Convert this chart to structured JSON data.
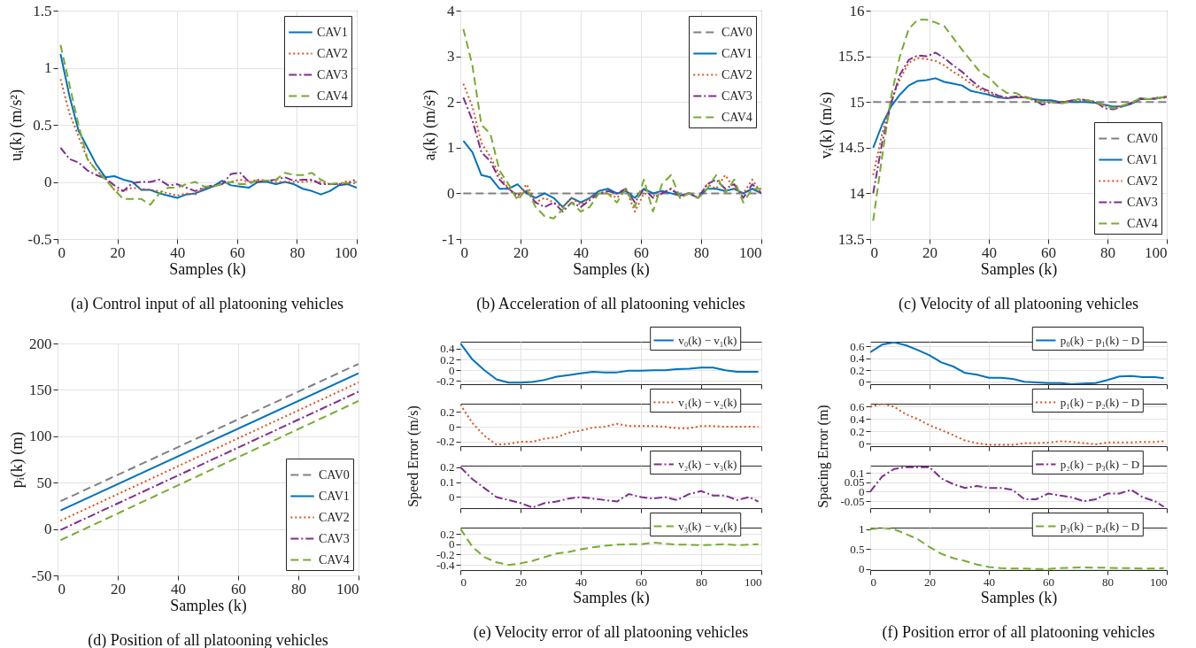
{
  "chart_data": [
    {
      "type": "line",
      "x": [
        1,
        4,
        7,
        10,
        13,
        16,
        19,
        22,
        25,
        28,
        31,
        34,
        37,
        40,
        43,
        46,
        49,
        52,
        55,
        58,
        61,
        64,
        67,
        70,
        73,
        76,
        79,
        82,
        85,
        88,
        91,
        94,
        97,
        100
      ],
      "xlim": [
        0,
        100
      ],
      "xticks": [
        0,
        20,
        40,
        60,
        80,
        100
      ],
      "ylim": [
        -0.5,
        1.5
      ],
      "yticks": [
        -0.5,
        0,
        0.5,
        1,
        1.5
      ],
      "xlabel": "Samples (k)",
      "ylabel": "uᵢ(k) (m/s²)",
      "grid": true,
      "legend": "top right",
      "annotations": [
        "(a) Control input of all platooning vehicles"
      ],
      "series": [
        {
          "name": "CAV1",
          "color": "#0072bd",
          "line_style": "solid",
          "values": [
            1.12,
            0.75,
            0.45,
            0.3,
            0.15,
            0.04,
            0.05,
            0.02,
            0.0,
            -0.07,
            -0.07,
            -0.1,
            -0.12,
            -0.14,
            -0.11,
            -0.1,
            -0.07,
            -0.04,
            0.01,
            -0.03,
            -0.04,
            -0.05,
            0.0,
            0.0,
            -0.02,
            0.0,
            -0.02,
            -0.06,
            -0.08,
            -0.11,
            -0.08,
            -0.03,
            -0.02,
            -0.05
          ]
        },
        {
          "name": "CAV2",
          "color": "#d95319",
          "line_style": "dotted",
          "values": [
            0.9,
            0.6,
            0.4,
            0.2,
            0.1,
            0.03,
            -0.07,
            -0.08,
            -0.05,
            -0.06,
            -0.07,
            -0.08,
            -0.1,
            -0.12,
            -0.1,
            -0.11,
            -0.05,
            -0.04,
            -0.01,
            0.0,
            0.02,
            0.0,
            0.02,
            0.01,
            0.0,
            0.0,
            0.0,
            0.0,
            0.01,
            0.0,
            -0.02,
            -0.02,
            0.01,
            -0.02
          ]
        },
        {
          "name": "CAV3",
          "color": "#7e2f8e",
          "line_style": "dashdot",
          "values": [
            0.3,
            0.2,
            0.17,
            0.1,
            0.06,
            0.03,
            -0.03,
            -0.08,
            -0.01,
            0.0,
            0.0,
            0.02,
            -0.03,
            -0.02,
            -0.05,
            -0.08,
            -0.05,
            -0.03,
            -0.02,
            0.07,
            0.08,
            0.0,
            0.0,
            0.01,
            0.02,
            0.04,
            0.01,
            0.02,
            0.02,
            -0.02,
            -0.02,
            -0.02,
            -0.02,
            0.03
          ]
        },
        {
          "name": "CAV4",
          "color": "#77ac30",
          "line_style": "dashed",
          "values": [
            1.2,
            0.85,
            0.5,
            0.2,
            0.1,
            0.02,
            -0.07,
            -0.15,
            -0.15,
            -0.15,
            -0.2,
            -0.1,
            -0.05,
            -0.05,
            -0.02,
            0.0,
            -0.04,
            -0.04,
            -0.02,
            0.0,
            -0.02,
            -0.02,
            0.02,
            0.01,
            0.02,
            0.08,
            0.06,
            0.06,
            0.08,
            0.02,
            -0.02,
            -0.01,
            -0.01,
            0.0
          ]
        }
      ]
    },
    {
      "type": "line",
      "x": [
        1,
        4,
        7,
        10,
        13,
        16,
        19,
        22,
        25,
        28,
        31,
        34,
        37,
        40,
        43,
        46,
        49,
        52,
        55,
        58,
        61,
        64,
        67,
        70,
        73,
        76,
        79,
        82,
        85,
        88,
        91,
        94,
        97,
        100
      ],
      "xlim": [
        0,
        100
      ],
      "xticks": [
        0,
        20,
        40,
        60,
        80,
        100
      ],
      "ylim": [
        -1,
        4
      ],
      "yticks": [
        -1,
        0,
        1,
        2,
        3,
        4
      ],
      "xlabel": "Samples (k)",
      "ylabel": "aᵢ(k) (m/s²)",
      "grid": true,
      "legend": "top right",
      "annotations": [
        "(b) Acceleration of all platooning vehicles"
      ],
      "series": [
        {
          "name": "CAV0",
          "color": "#808080",
          "line_style": "dashed",
          "values": [
            0,
            0,
            0,
            0,
            0,
            0,
            0,
            0,
            0,
            0,
            0,
            0,
            0,
            0,
            0,
            0,
            0,
            0,
            0,
            0,
            0,
            0,
            0,
            0,
            0,
            0,
            0,
            0,
            0,
            0,
            0,
            0,
            0,
            0
          ]
        },
        {
          "name": "CAV1",
          "color": "#0072bd",
          "line_style": "solid",
          "values": [
            1.15,
            0.9,
            0.4,
            0.35,
            0.1,
            0.1,
            0.2,
            0.0,
            -0.1,
            0.0,
            -0.1,
            -0.3,
            -0.1,
            -0.2,
            -0.1,
            0.05,
            0.1,
            0.0,
            0.05,
            -0.1,
            0.1,
            0.0,
            0.05,
            0.0,
            -0.05,
            0.0,
            -0.1,
            0.1,
            0.1,
            0.05,
            0.1,
            0.0,
            0.1,
            0.0
          ]
        },
        {
          "name": "CAV2",
          "color": "#d95319",
          "line_style": "dotted",
          "values": [
            2.4,
            1.9,
            1.1,
            0.8,
            0.4,
            0.1,
            -0.1,
            0.2,
            -0.2,
            -0.1,
            -0.2,
            -0.3,
            -0.1,
            -0.25,
            -0.1,
            0.0,
            0.0,
            -0.1,
            0.1,
            -0.4,
            0.0,
            -0.05,
            0.0,
            0.1,
            -0.1,
            0.0,
            -0.1,
            0.2,
            0.1,
            0.4,
            0.1,
            0.0,
            0.3,
            0.0
          ]
        },
        {
          "name": "CAV3",
          "color": "#7e2f8e",
          "line_style": "dashdot",
          "values": [
            2.1,
            1.6,
            0.9,
            0.7,
            0.3,
            0.1,
            -0.05,
            0.05,
            -0.2,
            -0.3,
            -0.2,
            -0.4,
            -0.2,
            -0.3,
            -0.15,
            0.0,
            0.05,
            0.0,
            0.1,
            -0.2,
            0.1,
            -0.1,
            0.0,
            0.1,
            -0.05,
            0.0,
            -0.1,
            0.2,
            0.3,
            0.1,
            0.2,
            -0.1,
            0.2,
            0.0
          ]
        },
        {
          "name": "CAV4",
          "color": "#77ac30",
          "line_style": "dashed",
          "values": [
            3.6,
            2.8,
            1.5,
            1.3,
            0.5,
            0.2,
            -0.15,
            0.1,
            -0.3,
            -0.5,
            -0.55,
            -0.35,
            -0.2,
            -0.4,
            -0.3,
            0.0,
            0.0,
            -0.2,
            0.1,
            -0.3,
            0.3,
            -0.4,
            0.2,
            0.4,
            -0.1,
            0.0,
            -0.1,
            0.1,
            0.4,
            0.0,
            0.3,
            -0.2,
            0.1,
            0.1
          ]
        }
      ]
    },
    {
      "type": "line",
      "x": [
        1,
        4,
        7,
        10,
        13,
        16,
        19,
        22,
        25,
        28,
        31,
        34,
        37,
        40,
        43,
        46,
        49,
        52,
        55,
        58,
        61,
        64,
        67,
        70,
        73,
        76,
        79,
        82,
        85,
        88,
        91,
        94,
        97,
        100
      ],
      "xlim": [
        0,
        100
      ],
      "xticks": [
        0,
        20,
        40,
        60,
        80,
        100
      ],
      "ylim": [
        13.5,
        16
      ],
      "yticks": [
        13.5,
        14,
        14.5,
        15,
        15.5,
        16
      ],
      "xlabel": "Samples (k)",
      "ylabel": "vᵢ(k) (m/s)",
      "grid": true,
      "legend": "bottom right",
      "annotations": [
        "(c) Velocity of all platooning vehicles"
      ],
      "series": [
        {
          "name": "CAV0",
          "color": "#808080",
          "line_style": "dashed",
          "values": [
            15,
            15,
            15,
            15,
            15,
            15,
            15,
            15,
            15,
            15,
            15,
            15,
            15,
            15,
            15,
            15,
            15,
            15,
            15,
            15,
            15,
            15,
            15,
            15,
            15,
            15,
            15,
            15,
            15,
            15,
            15,
            15,
            15,
            15
          ]
        },
        {
          "name": "CAV1",
          "color": "#0072bd",
          "line_style": "solid",
          "values": [
            14.5,
            14.75,
            14.95,
            15.08,
            15.18,
            15.23,
            15.24,
            15.26,
            15.22,
            15.2,
            15.18,
            15.12,
            15.1,
            15.08,
            15.05,
            15.04,
            15.05,
            15.05,
            15.03,
            15.02,
            15.02,
            15.0,
            15.0,
            15.0,
            15.0,
            14.99,
            14.97,
            14.95,
            14.95,
            14.98,
            15.03,
            15.03,
            15.04,
            15.06
          ]
        },
        {
          "name": "CAV2",
          "color": "#d95319",
          "line_style": "dotted",
          "values": [
            14.2,
            14.65,
            15.0,
            15.25,
            15.43,
            15.48,
            15.47,
            15.45,
            15.4,
            15.33,
            15.27,
            15.2,
            15.14,
            15.1,
            15.06,
            15.04,
            15.05,
            15.05,
            15.02,
            15.0,
            15.0,
            15.0,
            15.01,
            15.02,
            15.02,
            15.0,
            14.96,
            14.94,
            14.96,
            14.99,
            15.03,
            15.03,
            15.05,
            15.05
          ]
        },
        {
          "name": "CAV3",
          "color": "#7e2f8e",
          "line_style": "dashdot",
          "values": [
            14.0,
            14.55,
            14.98,
            15.3,
            15.46,
            15.51,
            15.5,
            15.54,
            15.48,
            15.4,
            15.33,
            15.24,
            15.16,
            15.12,
            15.07,
            15.05,
            15.06,
            15.06,
            15.03,
            14.97,
            15.0,
            14.99,
            15.01,
            15.03,
            15.02,
            15.0,
            14.93,
            14.92,
            14.95,
            14.99,
            15.04,
            15.03,
            15.04,
            15.05
          ]
        },
        {
          "name": "CAV4",
          "color": "#77ac30",
          "line_style": "dashed",
          "values": [
            13.7,
            14.4,
            15.05,
            15.5,
            15.8,
            15.9,
            15.9,
            15.87,
            15.83,
            15.7,
            15.57,
            15.45,
            15.33,
            15.27,
            15.17,
            15.1,
            15.1,
            15.05,
            15.03,
            15.0,
            15.0,
            14.98,
            15.0,
            15.03,
            15.02,
            15.0,
            14.96,
            14.93,
            14.96,
            14.99,
            15.04,
            15.03,
            15.04,
            15.06
          ]
        }
      ]
    },
    {
      "type": "line",
      "x": [
        1,
        100
      ],
      "xlim": [
        0,
        100
      ],
      "xticks": [
        0,
        20,
        40,
        60,
        80,
        100
      ],
      "ylim": [
        -50,
        200
      ],
      "yticks": [
        -50,
        0,
        50,
        100,
        150,
        200
      ],
      "xlabel": "Samples (k)",
      "ylabel": "pᵢ(k) (m)",
      "grid": true,
      "legend": "bottom right",
      "annotations": [
        "(d) Position of all platooning vehicles"
      ],
      "series": [
        {
          "name": "CAV0",
          "color": "#808080",
          "line_style": "dashed",
          "values": [
            30,
            178
          ]
        },
        {
          "name": "CAV1",
          "color": "#0072bd",
          "line_style": "solid",
          "values": [
            20,
            168
          ]
        },
        {
          "name": "CAV2",
          "color": "#d95319",
          "line_style": "dotted",
          "values": [
            9,
            158
          ]
        },
        {
          "name": "CAV3",
          "color": "#7e2f8e",
          "line_style": "dashdot",
          "values": [
            -1,
            148
          ]
        },
        {
          "name": "CAV4",
          "color": "#77ac30",
          "line_style": "dashed",
          "values": [
            -12,
            138
          ]
        }
      ]
    },
    {
      "type": "line",
      "x": [
        0,
        4,
        8,
        12,
        16,
        20,
        24,
        28,
        32,
        36,
        40,
        44,
        48,
        52,
        56,
        60,
        64,
        68,
        72,
        76,
        80,
        84,
        88,
        92,
        96,
        99
      ],
      "xlim": [
        0,
        100
      ],
      "xticks": [
        0,
        20,
        40,
        60,
        80,
        100
      ],
      "ylim": [
        -0.26,
        0.53
      ],
      "yticks": [
        -0.2,
        0,
        0.2,
        0.4
      ],
      "ylabel": "Speed Error (m/s)",
      "grid": true,
      "legend": "top right",
      "tick_labels": "y",
      "series": [
        {
          "name": "v₀(k) − v₁(k)",
          "color": "#0072bd",
          "line_style": "solid",
          "values": [
            0.5,
            0.2,
            0.0,
            -0.17,
            -0.23,
            -0.23,
            -0.22,
            -0.18,
            -0.12,
            -0.09,
            -0.06,
            -0.03,
            -0.04,
            -0.04,
            -0.01,
            -0.01,
            0.0,
            0.0,
            0.02,
            0.03,
            0.05,
            0.05,
            0.0,
            -0.03,
            -0.03,
            -0.03
          ]
        }
      ]
    },
    {
      "type": "line",
      "x": [
        0,
        4,
        8,
        12,
        16,
        20,
        24,
        28,
        32,
        36,
        40,
        44,
        48,
        52,
        56,
        60,
        64,
        68,
        72,
        76,
        80,
        84,
        88,
        92,
        96,
        99
      ],
      "xlim": [
        0,
        100
      ],
      "xticks": [
        0,
        20,
        40,
        60,
        80,
        100
      ],
      "ylim": [
        -0.26,
        0.31
      ],
      "yticks": [
        -0.2,
        0,
        0.2
      ],
      "grid": true,
      "legend": "top right",
      "tick_labels": "y",
      "series": [
        {
          "name": "v₁(k) − v₂(k)",
          "color": "#d95319",
          "line_style": "dotted",
          "values": [
            0.3,
            0.05,
            -0.12,
            -0.24,
            -0.23,
            -0.2,
            -0.2,
            -0.16,
            -0.14,
            -0.08,
            -0.05,
            -0.01,
            0.0,
            0.04,
            0.01,
            0.01,
            0.01,
            0.0,
            -0.02,
            -0.02,
            0.01,
            0.01,
            0.0,
            0.0,
            0.0,
            0.0
          ]
        }
      ]
    },
    {
      "type": "line",
      "x": [
        0,
        4,
        8,
        12,
        16,
        20,
        24,
        28,
        32,
        36,
        40,
        44,
        48,
        52,
        56,
        60,
        64,
        68,
        72,
        76,
        80,
        84,
        88,
        92,
        96,
        99
      ],
      "xlim": [
        0,
        100
      ],
      "xticks": [
        0,
        20,
        40,
        60,
        80,
        100
      ],
      "ylim": [
        -0.074,
        0.21
      ],
      "yticks": [
        0,
        0.1,
        0.2
      ],
      "grid": true,
      "legend": "top right",
      "tick_labels": "y",
      "series": [
        {
          "name": "v₂(k) − v₃(k)",
          "color": "#7e2f8e",
          "line_style": "dashdot",
          "values": [
            0.2,
            0.12,
            0.06,
            0.0,
            -0.02,
            -0.04,
            -0.07,
            -0.04,
            -0.03,
            -0.01,
            0.0,
            -0.01,
            -0.02,
            -0.03,
            0.02,
            0.0,
            -0.01,
            0.0,
            -0.02,
            0.02,
            0.04,
            0.01,
            0.01,
            -0.02,
            0.0,
            -0.03
          ]
        }
      ]
    },
    {
      "type": "line",
      "x": [
        0,
        4,
        8,
        12,
        16,
        20,
        24,
        28,
        32,
        36,
        40,
        44,
        48,
        52,
        56,
        60,
        64,
        68,
        72,
        76,
        80,
        84,
        88,
        92,
        96,
        99
      ],
      "xlim": [
        0,
        100
      ],
      "xticks": [
        0,
        20,
        40,
        60,
        80,
        100
      ],
      "ylim": [
        -0.5,
        0.32
      ],
      "yticks": [
        -0.4,
        -0.2,
        0,
        0.2
      ],
      "xlabel": "Samples (k)",
      "grid": true,
      "legend": "top right",
      "annotations": [
        "(e) Velocity error of all platooning vehicles"
      ],
      "series": [
        {
          "name": "v₃(k) − v₄(k)",
          "color": "#77ac30",
          "line_style": "dashed",
          "values": [
            0.3,
            -0.05,
            -0.25,
            -0.35,
            -0.4,
            -0.37,
            -0.32,
            -0.25,
            -0.18,
            -0.15,
            -0.1,
            -0.06,
            -0.03,
            -0.01,
            0.0,
            0.0,
            0.03,
            0.01,
            -0.01,
            -0.01,
            -0.02,
            -0.01,
            0.0,
            -0.02,
            -0.01,
            0.0
          ]
        }
      ]
    },
    {
      "type": "line",
      "x": [
        0,
        4,
        8,
        12,
        16,
        20,
        24,
        28,
        32,
        36,
        40,
        44,
        48,
        52,
        56,
        60,
        64,
        68,
        72,
        76,
        80,
        84,
        88,
        92,
        96,
        99
      ],
      "xlim": [
        0,
        100
      ],
      "xticks": [
        0,
        20,
        40,
        60,
        80,
        100
      ],
      "ylim": [
        -0.04,
        0.68
      ],
      "yticks": [
        0,
        0.2,
        0.4,
        0.6
      ],
      "ylabel": "Spacing Error (m)",
      "grid": true,
      "legend": "top right",
      "tick_labels": "y",
      "series": [
        {
          "name": "p₀(k) − p₁(k) − D",
          "color": "#0072bd",
          "line_style": "solid",
          "values": [
            0.5,
            0.63,
            0.67,
            0.62,
            0.54,
            0.45,
            0.33,
            0.26,
            0.15,
            0.12,
            0.07,
            0.07,
            0.05,
            0.0,
            -0.01,
            -0.02,
            -0.02,
            -0.04,
            -0.03,
            -0.02,
            0.03,
            0.09,
            0.1,
            0.08,
            0.08,
            0.06
          ]
        }
      ]
    },
    {
      "type": "line",
      "x": [
        0,
        4,
        8,
        12,
        16,
        20,
        24,
        28,
        32,
        36,
        40,
        44,
        48,
        52,
        56,
        60,
        64,
        68,
        72,
        76,
        80,
        84,
        88,
        92,
        96,
        99
      ],
      "xlim": [
        0,
        100
      ],
      "xticks": [
        0,
        20,
        40,
        60,
        80,
        100
      ],
      "ylim": [
        -0.04,
        0.65
      ],
      "yticks": [
        0,
        0.2,
        0.4,
        0.6
      ],
      "grid": true,
      "legend": "top right",
      "tick_labels": "y",
      "series": [
        {
          "name": "p₁(k) − p₂(k) − D",
          "color": "#d95319",
          "line_style": "dotted",
          "values": [
            0.6,
            0.65,
            0.6,
            0.48,
            0.4,
            0.3,
            0.22,
            0.14,
            0.05,
            0.01,
            -0.02,
            -0.02,
            -0.02,
            0.01,
            0.01,
            0.02,
            0.04,
            0.03,
            0.01,
            -0.01,
            0.02,
            0.02,
            0.02,
            0.03,
            0.03,
            0.04
          ]
        }
      ]
    },
    {
      "type": "line",
      "x": [
        0,
        4,
        8,
        12,
        16,
        20,
        24,
        28,
        32,
        36,
        40,
        44,
        48,
        52,
        56,
        60,
        64,
        68,
        72,
        76,
        80,
        84,
        88,
        92,
        96,
        99
      ],
      "xlim": [
        0,
        100
      ],
      "xticks": [
        0,
        20,
        40,
        60,
        80,
        100
      ],
      "ylim": [
        -0.087,
        0.138
      ],
      "yticks": [
        -0.05,
        0,
        0.05,
        0.1
      ],
      "grid": true,
      "legend": "top right",
      "tick_labels": "y",
      "series": [
        {
          "name": "p₂(k) − p₃(k) − D",
          "color": "#7e2f8e",
          "line_style": "dashdot",
          "values": [
            0.0,
            0.08,
            0.12,
            0.13,
            0.13,
            0.13,
            0.07,
            0.04,
            0.02,
            0.03,
            0.02,
            0.02,
            0.01,
            -0.04,
            -0.04,
            -0.01,
            -0.02,
            -0.03,
            -0.05,
            -0.04,
            -0.01,
            -0.01,
            0.01,
            -0.03,
            -0.05,
            -0.08
          ]
        }
      ]
    },
    {
      "type": "line",
      "x": [
        0,
        4,
        8,
        12,
        16,
        20,
        24,
        28,
        32,
        36,
        40,
        44,
        48,
        52,
        56,
        60,
        64,
        68,
        72,
        76,
        80,
        84,
        88,
        92,
        96,
        99
      ],
      "xlim": [
        0,
        100
      ],
      "xticks": [
        0,
        20,
        40,
        60,
        80,
        100
      ],
      "ylim": [
        -0.03,
        1.04
      ],
      "yticks": [
        0,
        0.5,
        1
      ],
      "xlabel": "Samples (k)",
      "grid": true,
      "legend": "top right",
      "annotations": [
        "(f) Position error of all platooning vehicles"
      ],
      "series": [
        {
          "name": "p₃(k) − p₄(k) − D",
          "color": "#77ac30",
          "line_style": "dashed",
          "values": [
            1.0,
            1.04,
            1.0,
            0.88,
            0.75,
            0.55,
            0.38,
            0.27,
            0.2,
            0.11,
            0.05,
            0.02,
            0.01,
            0.01,
            0.0,
            0.0,
            0.02,
            0.03,
            0.04,
            0.03,
            0.03,
            0.02,
            0.02,
            0.01,
            0.01,
            0.02
          ]
        }
      ]
    }
  ]
}
